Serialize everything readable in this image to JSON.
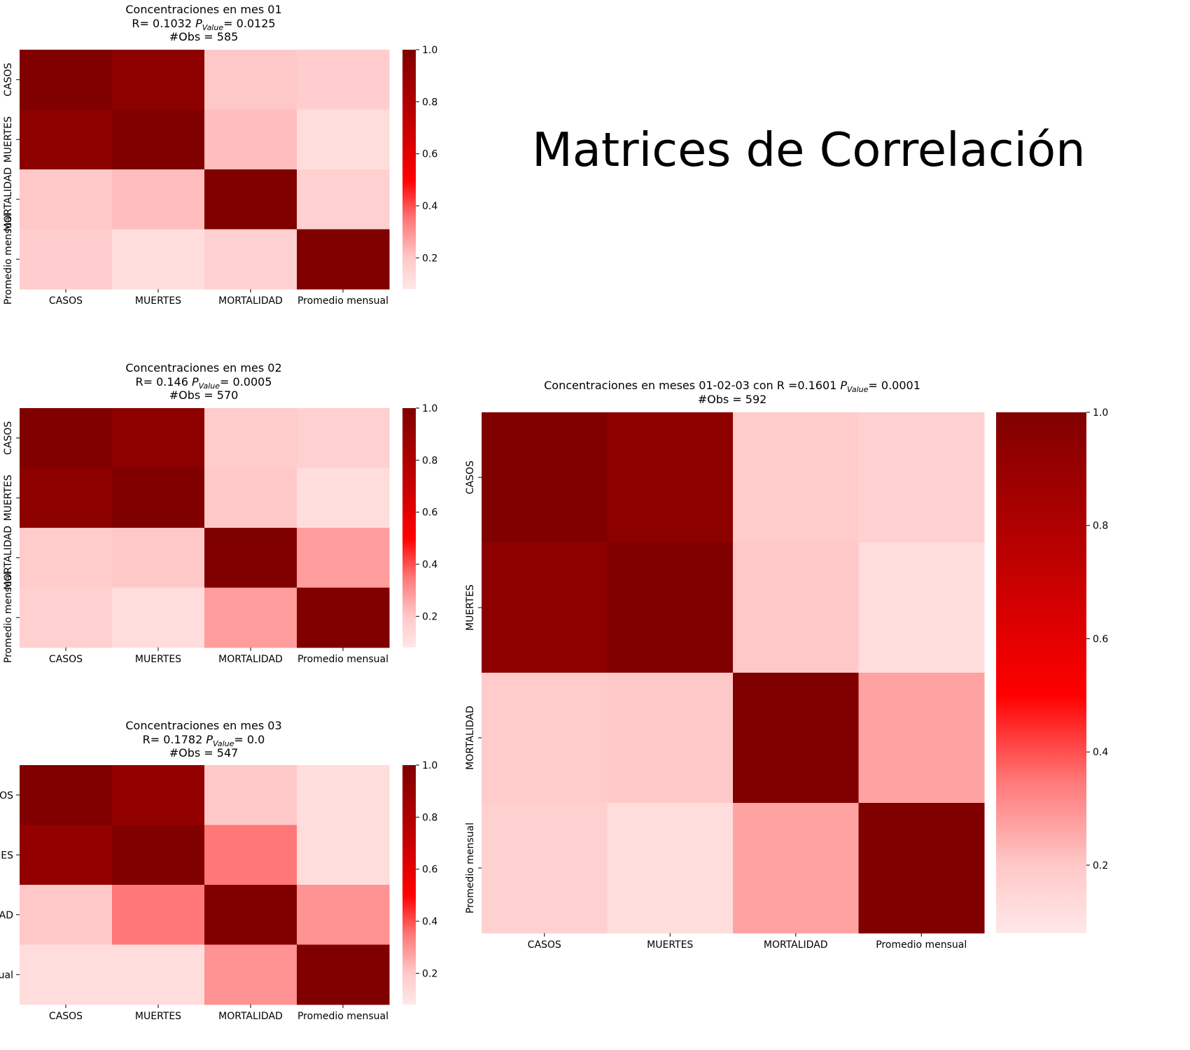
{
  "page_title": "Matrices de Correlación",
  "colorscale": {
    "stops": [
      "#ffe8e8",
      "#ffc8c8",
      "#ff7777",
      "#ff0000",
      "#bb0000",
      "#800000"
    ],
    "stop_values": [
      0.08,
      0.2,
      0.35,
      0.5,
      0.75,
      1.0
    ]
  },
  "chart_data": [
    {
      "type": "heatmap",
      "title_line1": "Concentraciones en mes 01",
      "r_text": "R= 0.1032 ",
      "p_text": "= 0.0125",
      "p_symbol": "P",
      "p_subscript": "Value",
      "obs_text": "#Obs = 585",
      "labels": [
        "CASOS",
        "MUERTES",
        "MORTALIDAD",
        "Promedio mensual"
      ],
      "values": [
        [
          1.0,
          0.95,
          0.2,
          0.18
        ],
        [
          0.95,
          1.0,
          0.22,
          0.12
        ],
        [
          0.2,
          0.22,
          1.0,
          0.17
        ],
        [
          0.18,
          0.12,
          0.17,
          1.0
        ]
      ],
      "colorbar_ticks": [
        "0.2",
        "0.4",
        "0.6",
        "0.8",
        "1.0"
      ],
      "colorbar_range": [
        0.08,
        1.0
      ]
    },
    {
      "type": "heatmap",
      "title_line1": "Concentraciones en mes 02",
      "r_text": "R= 0.146 ",
      "p_text": "= 0.0005",
      "p_symbol": "P",
      "p_subscript": "Value",
      "obs_text": "#Obs = 570",
      "labels": [
        "CASOS",
        "MUERTES",
        "MORTALIDAD",
        "Promedio mensual"
      ],
      "values": [
        [
          1.0,
          0.95,
          0.19,
          0.17
        ],
        [
          0.95,
          1.0,
          0.2,
          0.12
        ],
        [
          0.19,
          0.2,
          1.0,
          0.28
        ],
        [
          0.17,
          0.12,
          0.28,
          1.0
        ]
      ],
      "colorbar_ticks": [
        "0.2",
        "0.4",
        "0.6",
        "0.8",
        "1.0"
      ],
      "colorbar_range": [
        0.08,
        1.0
      ]
    },
    {
      "type": "heatmap",
      "title_line1": "Concentraciones en mes 03",
      "r_text": "R= 0.1782 ",
      "p_text": "= 0.0",
      "p_symbol": "P",
      "p_subscript": "Value",
      "obs_text": "#Obs = 547",
      "labels": [
        "CASOS",
        "MUERTES",
        "MORTALIDAD",
        "Promedio mensual"
      ],
      "tick_labels_visible": [
        "OS",
        "ES",
        "AD",
        "ual"
      ],
      "values": [
        [
          1.0,
          0.92,
          0.2,
          0.12
        ],
        [
          0.92,
          1.0,
          0.35,
          0.12
        ],
        [
          0.2,
          0.35,
          1.0,
          0.3
        ],
        [
          0.12,
          0.12,
          0.3,
          1.0
        ]
      ],
      "colorbar_ticks": [
        "0.2",
        "0.4",
        "0.6",
        "0.8",
        "1.0"
      ],
      "colorbar_range": [
        0.08,
        1.0
      ]
    },
    {
      "type": "heatmap",
      "title_line1_prefix": "Concentraciones en meses 01-02-03 con R =0.1601 ",
      "p_text": "= 0.0001",
      "p_symbol": "P",
      "p_subscript": "Value",
      "obs_text": "#Obs = 592",
      "labels": [
        "CASOS",
        "MUERTES",
        "MORTALIDAD",
        "Promedio mensual"
      ],
      "values": [
        [
          1.0,
          0.95,
          0.19,
          0.17
        ],
        [
          0.95,
          1.0,
          0.2,
          0.12
        ],
        [
          0.19,
          0.2,
          1.0,
          0.27
        ],
        [
          0.17,
          0.12,
          0.27,
          1.0
        ]
      ],
      "colorbar_ticks": [
        "0.2",
        "0.4",
        "0.6",
        "0.8",
        "1.0"
      ],
      "colorbar_range": [
        0.08,
        1.0
      ]
    }
  ]
}
